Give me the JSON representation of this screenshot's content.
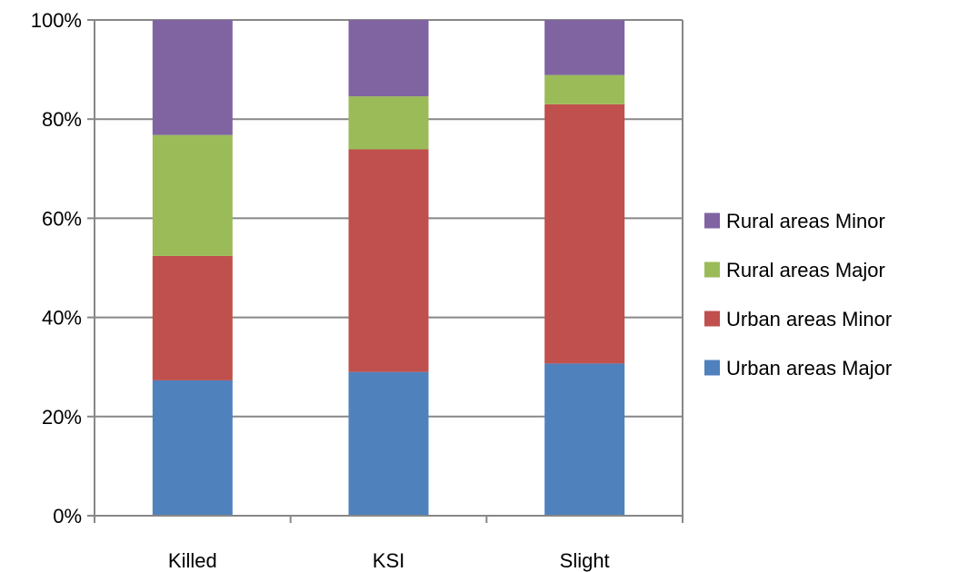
{
  "chart_data": {
    "type": "bar",
    "stacked": true,
    "normalized": true,
    "categories": [
      "Killed",
      "KSI",
      "Slight"
    ],
    "series": [
      {
        "name": "Urban areas Major",
        "values": [
          27.3,
          29.0,
          30.7
        ],
        "color": "#4F81BD"
      },
      {
        "name": "Urban areas Minor",
        "values": [
          25.1,
          44.9,
          52.3
        ],
        "color": "#C0504D"
      },
      {
        "name": "Rural areas Major",
        "values": [
          24.4,
          10.7,
          5.9
        ],
        "color": "#9BBB59"
      },
      {
        "name": "Rural areas Minor",
        "values": [
          23.2,
          15.4,
          11.1
        ],
        "color": "#8064A2"
      }
    ],
    "y_ticks": [
      "0%",
      "20%",
      "40%",
      "60%",
      "80%",
      "100%"
    ],
    "ylim": [
      0,
      100
    ],
    "grid": true,
    "legend": {
      "placement": "right",
      "order": [
        "Rural areas Minor",
        "Rural areas Major",
        "Urban areas Minor",
        "Urban areas Major"
      ]
    },
    "title": "",
    "xlabel": "",
    "ylabel": ""
  }
}
